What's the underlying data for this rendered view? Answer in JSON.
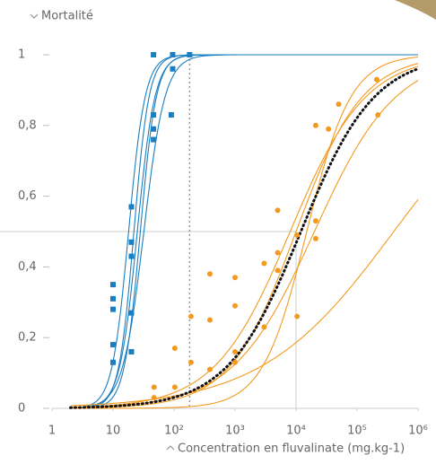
{
  "chart_data": {
    "type": "scatter",
    "y_label": "Mortalité",
    "x_label": "Concentration en fluvalinate (mg.kg-1)",
    "log_x": true,
    "xlim": [
      1,
      1000000
    ],
    "ylim": [
      0,
      1
    ],
    "xticks": [
      1,
      10,
      {
        "value": 100,
        "label": "10²"
      },
      {
        "value": 1000,
        "label": "10³"
      },
      {
        "value": 10000,
        "label": "10⁴"
      },
      {
        "value": 100000,
        "label": "10⁵"
      },
      {
        "value": 1000000,
        "label": "10⁶"
      }
    ],
    "yticks": [
      0,
      {
        "value": 0.2,
        "label": "0,2"
      },
      {
        "value": 0.4,
        "label": "0,4"
      },
      {
        "value": 0.6,
        "label": "0,6"
      },
      {
        "value": 0.8,
        "label": "0,8"
      },
      1
    ],
    "reference_x_dotted": 180,
    "crosshair": {
      "x": 10000,
      "y": 0.5
    },
    "series": [
      {
        "color": "#1a7ec0",
        "marker": "square",
        "x": [
          10,
          10,
          10,
          10,
          10,
          20,
          20,
          20,
          20,
          20,
          46,
          46,
          46,
          46,
          95,
          95,
          90,
          180
        ],
        "values": [
          0.35,
          0.31,
          0.28,
          0.18,
          0.13,
          0.57,
          0.47,
          0.43,
          0.27,
          0.16,
          1.0,
          0.83,
          0.79,
          0.76,
          1.0,
          0.96,
          0.83,
          1.0
        ]
      },
      {
        "color": "#f39a1e",
        "marker": "circle",
        "x": [
          47,
          47,
          103,
          103,
          190,
          190,
          387,
          387,
          387,
          1000,
          1000,
          1000,
          1000,
          3000,
          3000,
          5000,
          5000,
          5000,
          10400,
          10400,
          21000,
          21000,
          21000,
          34000,
          50000,
          210000,
          220000
        ],
        "values": [
          0.06,
          0.03,
          0.17,
          0.06,
          0.26,
          0.13,
          0.38,
          0.25,
          0.11,
          0.37,
          0.29,
          0.16,
          0.13,
          0.41,
          0.23,
          0.39,
          0.44,
          0.56,
          0.49,
          0.26,
          0.48,
          0.53,
          0.8,
          0.79,
          0.86,
          0.93,
          0.83
        ]
      }
    ],
    "curve_range": [
      2,
      1000000
    ],
    "curves": [
      {
        "color": "#1a7ec0",
        "ec50": 18,
        "hill": 3.2
      },
      {
        "color": "#1a7ec0",
        "ec50": 22,
        "hill": 3.5
      },
      {
        "color": "#1a7ec0",
        "ec50": 25,
        "hill": 3
      },
      {
        "color": "#1a7ec0",
        "ec50": 28,
        "hill": 3.3
      },
      {
        "color": "#1a7ec0",
        "ec50": 32,
        "hill": 2.5
      },
      {
        "color": "#f39a1e",
        "ec50": 8000,
        "hill": 0.7
      },
      {
        "color": "#f39a1e",
        "ec50": 20000,
        "hill": 0.65
      },
      {
        "color": "#f39a1e",
        "ec50": 10000,
        "hill": 0.8
      },
      {
        "color": "#f39a1e",
        "ec50": 15000,
        "hill": 1.2
      },
      {
        "color": "#f39a1e",
        "ec50": 400000,
        "hill": 0.4
      },
      {
        "color": "#111111",
        "ec50": 12000,
        "hill": 0.72,
        "dotted": true
      }
    ]
  }
}
